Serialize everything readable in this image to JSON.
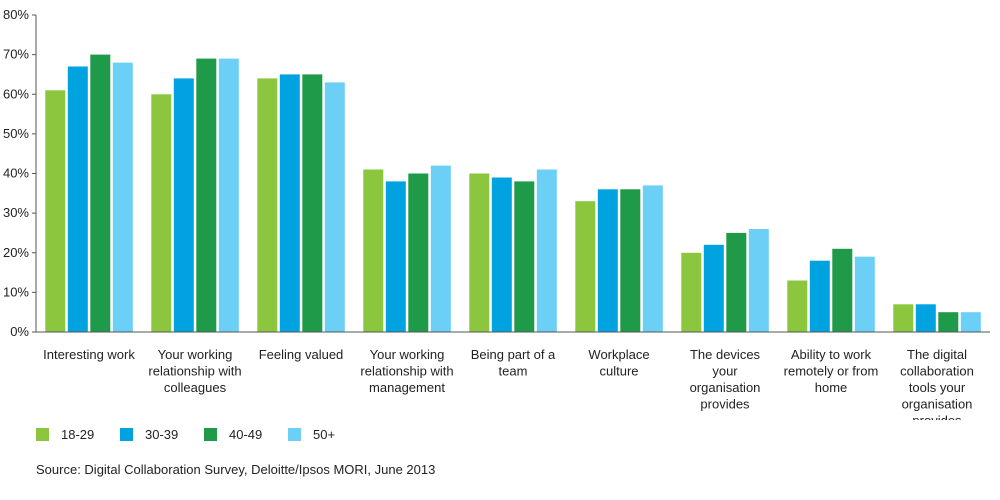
{
  "chart_data": {
    "type": "bar",
    "categories": [
      "Interesting work",
      "Your working relationship with colleagues",
      "Feeling valued",
      "Your working relationship with management",
      "Being part of a team",
      "Workplace culture",
      "The devices your organisation provides",
      "Ability to work remotely or from home",
      "The digital collaboration tools your organisation provides"
    ],
    "category_lines": [
      [
        "Interesting work"
      ],
      [
        "Your working",
        "relationship with",
        "colleagues"
      ],
      [
        "Feeling valued"
      ],
      [
        "Your working",
        "relationship with",
        "management"
      ],
      [
        "Being part of a",
        "team"
      ],
      [
        "Workplace",
        "culture"
      ],
      [
        "The devices",
        "your",
        "organisation",
        "provides"
      ],
      [
        "Ability to work",
        "remotely or from",
        "home"
      ],
      [
        "The digital",
        "collaboration",
        "tools your",
        "organisation",
        "provides"
      ]
    ],
    "series": [
      {
        "name": "18-29",
        "color": "#8cc63f",
        "values": [
          61,
          60,
          64,
          41,
          40,
          33,
          20,
          13,
          7
        ]
      },
      {
        "name": "30-39",
        "color": "#00a3e0",
        "values": [
          67,
          64,
          65,
          38,
          39,
          36,
          22,
          18,
          7
        ]
      },
      {
        "name": "40-49",
        "color": "#1e9a48",
        "values": [
          70,
          69,
          65,
          40,
          38,
          36,
          25,
          21,
          5
        ]
      },
      {
        "name": "50+",
        "color": "#6ccff6",
        "values": [
          68,
          69,
          63,
          42,
          41,
          37,
          26,
          19,
          5
        ]
      }
    ],
    "ylim": [
      0,
      80
    ],
    "yticks": [
      "0%",
      "10%",
      "20%",
      "30%",
      "40%",
      "50%",
      "60%",
      "70%",
      "80%"
    ],
    "grid": false,
    "legend_position": "bottom-left"
  },
  "source_text": "Source: Digital Collaboration Survey, Deloitte/Ipsos MORI, June 2013"
}
